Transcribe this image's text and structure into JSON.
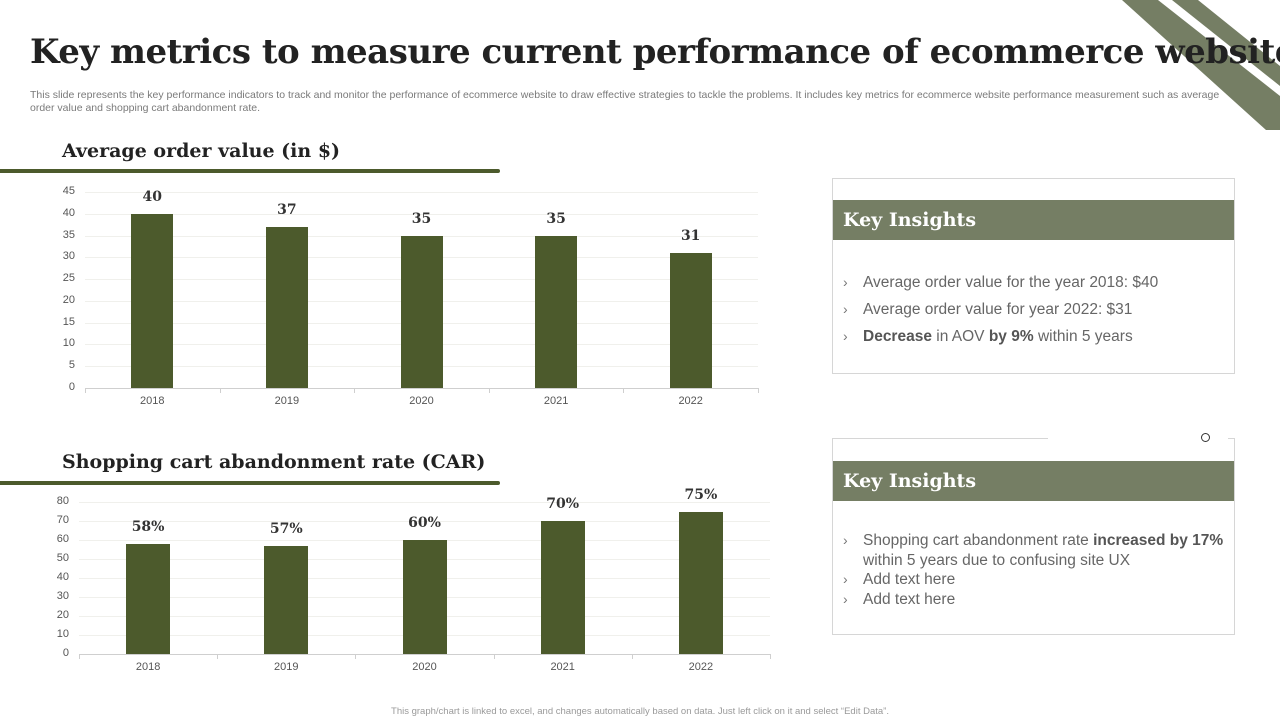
{
  "header": {
    "title": "Key metrics to measure current performance of ecommerce website",
    "subtitle": "This slide represents the key performance indicators to track and monitor the performance of ecommerce website to draw effective strategies to tackle the problems. It includes key metrics for ecommerce website performance measurement such as average order value and shopping cart abandonment rate."
  },
  "colors": {
    "bar": "#4c5a2c",
    "accent": "#757e64",
    "rule": "#4c5a2c"
  },
  "sections": {
    "aov": {
      "title": "Average order value (in $)"
    },
    "car": {
      "title": "Shopping cart abandonment rate (CAR)"
    }
  },
  "chart_data": [
    {
      "type": "bar",
      "title": "Average order value (in $)",
      "categories": [
        "2018",
        "2019",
        "2020",
        "2021",
        "2022"
      ],
      "values": [
        40,
        37,
        35,
        35,
        31
      ],
      "data_labels": [
        "40",
        "37",
        "35",
        "35",
        "31"
      ],
      "yticks": [
        "0",
        "5",
        "10",
        "15",
        "20",
        "25",
        "30",
        "35",
        "40",
        "45"
      ],
      "ylim": [
        0,
        45
      ],
      "xlabel": "",
      "ylabel": "",
      "grid": true,
      "legend": "none"
    },
    {
      "type": "bar",
      "title": "Shopping cart abandonment rate (CAR)",
      "categories": [
        "2018",
        "2019",
        "2020",
        "2021",
        "2022"
      ],
      "values": [
        58,
        57,
        60,
        70,
        75
      ],
      "data_labels": [
        "58%",
        "57%",
        "60%",
        "70%",
        "75%"
      ],
      "yticks": [
        "0",
        "10",
        "20",
        "30",
        "40",
        "50",
        "60",
        "70",
        "80"
      ],
      "ylim": [
        0,
        80
      ],
      "xlabel": "",
      "ylabel": "",
      "grid": true,
      "legend": "none"
    }
  ],
  "insights": [
    {
      "heading": "Key Insights",
      "items": [
        {
          "parts": [
            {
              "text": "Average order value  for the year 2018: $40",
              "bold": false
            }
          ]
        },
        {
          "parts": [
            {
              "text": "Average order value  for year 2022: $31",
              "bold": false
            }
          ]
        },
        {
          "parts": [
            {
              "text": "Decrease",
              "bold": true
            },
            {
              "text": " in AOV ",
              "bold": false
            },
            {
              "text": "by 9%",
              "bold": true
            },
            {
              "text": " within 5 years",
              "bold": false
            }
          ]
        }
      ]
    },
    {
      "heading": "Key Insights",
      "items": [
        {
          "parts": [
            {
              "text": "Shopping cart abandonment  rate ",
              "bold": false
            },
            {
              "text": "increased by 17%",
              "bold": true
            },
            {
              "text": " within 5 years due to confusing  site UX",
              "bold": false
            }
          ]
        },
        {
          "parts": [
            {
              "text": "Add text  here",
              "bold": false
            }
          ]
        },
        {
          "parts": [
            {
              "text": "Add text  here",
              "bold": false
            }
          ]
        }
      ]
    }
  ],
  "icons": {
    "bullet": "›",
    "bullet_name": "chevron-right-icon"
  },
  "footer": {
    "note": "This graph/chart is linked to excel, and changes automatically based on data. Just left click on it and select “Edit Data”."
  }
}
